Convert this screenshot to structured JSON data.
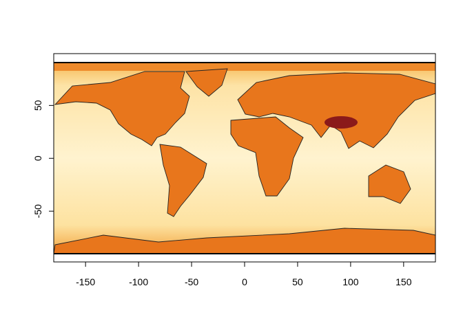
{
  "chart_data": {
    "type": "map",
    "xlim": [
      -180,
      180
    ],
    "ylim": [
      -98,
      99
    ],
    "xticks": [
      -150,
      -100,
      -50,
      0,
      50,
      100,
      150
    ],
    "yticks": [
      -50,
      0,
      50
    ]
  }
}
